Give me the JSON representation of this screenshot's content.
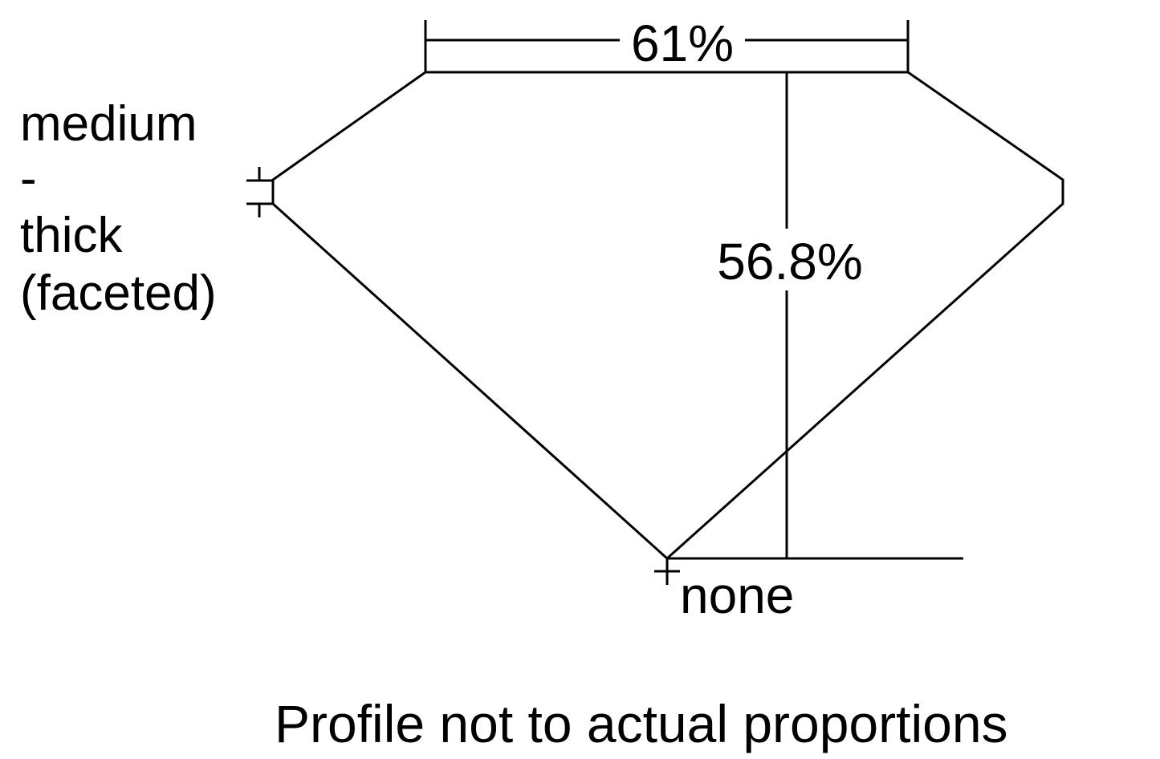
{
  "labels": {
    "table_width": "61%",
    "total_depth": "56.8%",
    "girdle": [
      "medium",
      "-",
      "thick",
      "(faceted)"
    ],
    "culet": "none",
    "note": "Profile not to actual proportions"
  },
  "colors": {
    "line": "#000000",
    "background": "#ffffff"
  }
}
